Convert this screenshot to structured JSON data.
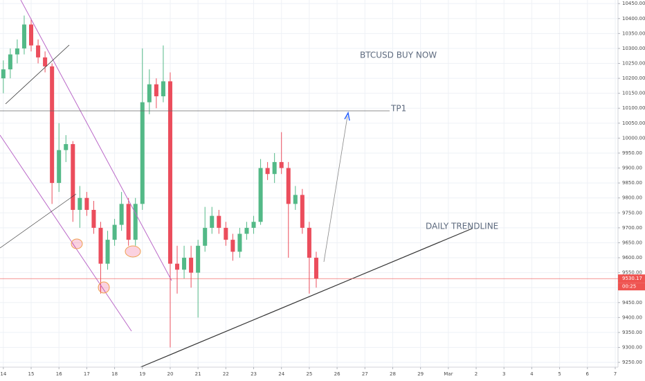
{
  "chart_data": {
    "type": "candlestick",
    "x": [
      14,
      14.25,
      14.5,
      14.75,
      15,
      15.25,
      15.5,
      15.75,
      16,
      16.25,
      16.5,
      16.75,
      17,
      17.25,
      17.5,
      17.75,
      18,
      18.25,
      18.5,
      18.75,
      19,
      19.25,
      19.5,
      19.75,
      20,
      20.25,
      20.5,
      20.75,
      21,
      21.25,
      21.5,
      21.75,
      22,
      22.25,
      22.5,
      22.75,
      23,
      23.25,
      23.5,
      23.75,
      24,
      24.25,
      24.5,
      24.75,
      25,
      25.25
    ],
    "open": [
      10200,
      10230,
      10280,
      10300,
      10380,
      10310,
      10270,
      10240,
      9850,
      9960,
      9980,
      9760,
      9800,
      9760,
      9700,
      9580,
      9660,
      9710,
      9780,
      9660,
      9780,
      10120,
      10180,
      10140,
      10190,
      9580,
      9560,
      9600,
      9550,
      9640,
      9700,
      9740,
      9700,
      9660,
      9620,
      9680,
      9700,
      9720,
      9900,
      9880,
      9920,
      9900,
      9780,
      9810,
      9700,
      9600
    ],
    "high": [
      10260,
      10300,
      10330,
      10410,
      10400,
      10330,
      10290,
      10250,
      10050,
      10010,
      9990,
      9840,
      9820,
      9790,
      9720,
      9690,
      9730,
      9820,
      9800,
      9800,
      10300,
      10230,
      10200,
      10310,
      10220,
      9640,
      9640,
      9640,
      9660,
      9770,
      9770,
      9760,
      9720,
      9680,
      9700,
      9720,
      9740,
      9930,
      9920,
      9950,
      10020,
      9920,
      9840,
      9830,
      9720,
      9620
    ],
    "low": [
      10150,
      10200,
      10250,
      10280,
      10290,
      10250,
      10220,
      9780,
      9820,
      9920,
      9720,
      9700,
      9740,
      9680,
      9480,
      9560,
      9640,
      9690,
      9640,
      9640,
      9760,
      10080,
      10100,
      10120,
      9300,
      9480,
      9530,
      9500,
      9400,
      9620,
      9680,
      9680,
      9640,
      9590,
      9600,
      9660,
      9680,
      9710,
      9860,
      9850,
      9880,
      9600,
      9760,
      9680,
      9480,
      9500
    ],
    "close": [
      10230,
      10280,
      10300,
      10380,
      10310,
      10270,
      10240,
      9850,
      9960,
      9980,
      9760,
      9800,
      9760,
      9700,
      9580,
      9660,
      9710,
      9780,
      9660,
      9780,
      10120,
      10180,
      10140,
      10190,
      9580,
      9560,
      9600,
      9550,
      9640,
      9700,
      9740,
      9700,
      9660,
      9620,
      9680,
      9700,
      9720,
      9900,
      9880,
      9920,
      9900,
      9780,
      9810,
      9700,
      9600,
      9530.17
    ],
    "up_color": "#53b987",
    "down_color": "#eb4d5c",
    "xlim": [
      13.88,
      36.1
    ],
    "xticks": [
      14,
      15,
      16,
      17,
      18,
      19,
      20,
      21,
      22,
      23,
      24,
      25,
      26,
      27,
      28,
      29,
      {
        "value": 30,
        "label": "Mar"
      },
      {
        "value": 31,
        "label": "2"
      },
      {
        "value": 32,
        "label": "3"
      },
      {
        "value": 33,
        "label": "4"
      },
      {
        "value": 34,
        "label": "5"
      },
      {
        "value": 35,
        "label": "6"
      },
      {
        "value": 36,
        "label": "7"
      }
    ],
    "ylim": [
      9234,
      10462
    ],
    "yticks": [
      {
        "value": 9250,
        "label": "9250.00"
      },
      {
        "value": 9300,
        "label": "9300.00"
      },
      {
        "value": 9350,
        "label": "9350.00"
      },
      {
        "value": 9400,
        "label": "9400.00"
      },
      {
        "value": 9450,
        "label": "9450.00"
      },
      {
        "value": 9500,
        "label": "9500.00"
      },
      {
        "value": 9550,
        "label": "9550.00"
      },
      {
        "value": 9600,
        "label": "9600.00"
      },
      {
        "value": 9650,
        "label": "9650.00"
      },
      {
        "value": 9700,
        "label": "9700.00"
      },
      {
        "value": 9750,
        "label": "9750.00"
      },
      {
        "value": 9800,
        "label": "9800.00"
      },
      {
        "value": 9850,
        "label": "9850.00"
      },
      {
        "value": 9900,
        "label": "9900.00"
      },
      {
        "value": 9950,
        "label": "9950.00"
      },
      {
        "value": 10000,
        "label": "10000.00"
      },
      {
        "value": 10050,
        "label": "10050.00"
      },
      {
        "value": 10100,
        "label": "10100.00"
      },
      {
        "value": 10150,
        "label": "10150.00"
      },
      {
        "value": 10200,
        "label": "10200.00"
      },
      {
        "value": 10250,
        "label": "10250.00"
      },
      {
        "value": 10300,
        "label": "10300.00"
      },
      {
        "value": 10350,
        "label": "10350.00"
      },
      {
        "value": 10400,
        "label": "10400.00"
      },
      {
        "value": 10450,
        "label": "10450.00"
      }
    ],
    "grid": true,
    "last_price": 9530.17,
    "countdown": "00:25",
    "annotations": [
      "BTCUSD BUY NOW",
      "TP1",
      "DAILY TRENDLINE"
    ]
  }
}
